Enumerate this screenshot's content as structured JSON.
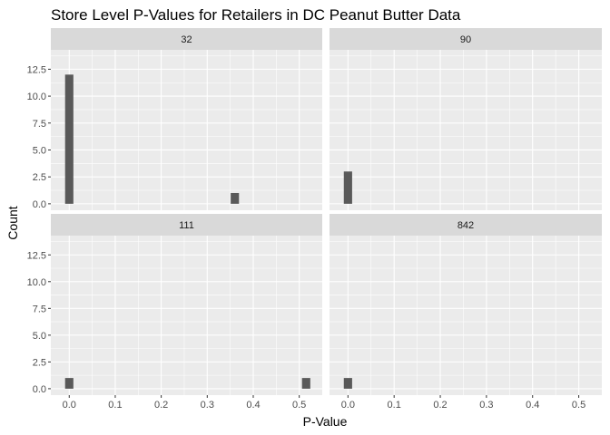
{
  "chart_data": {
    "type": "bar",
    "title": "Store Level P-Values for Retailers in DC Peanut Butter Data",
    "xlabel": "P-Value",
    "ylabel": "Count",
    "xlim": [
      -0.04,
      0.55
    ],
    "ylim": [
      -0.6,
      14.3
    ],
    "x_ticks": [
      0.0,
      0.1,
      0.2,
      0.3,
      0.4,
      0.5
    ],
    "x_tick_labels": [
      "0.0",
      "0.1",
      "0.2",
      "0.3",
      "0.4",
      "0.5"
    ],
    "y_ticks": [
      0.0,
      2.5,
      5.0,
      7.5,
      10.0,
      12.5
    ],
    "y_tick_labels": [
      "0.0",
      "2.5",
      "5.0",
      "7.5",
      "10.0",
      "12.5"
    ],
    "bin_width": 0.018,
    "grid": true,
    "facets": [
      {
        "label": "32",
        "bars": [
          {
            "x": 0.0,
            "count": 12
          },
          {
            "x": 0.36,
            "count": 1
          }
        ]
      },
      {
        "label": "90",
        "bars": [
          {
            "x": 0.0,
            "count": 3
          }
        ]
      },
      {
        "label": "111",
        "bars": [
          {
            "x": 0.0,
            "count": 1
          },
          {
            "x": 0.515,
            "count": 1
          }
        ]
      },
      {
        "label": "842",
        "bars": [
          {
            "x": 0.0,
            "count": 1
          }
        ]
      }
    ],
    "colors": {
      "panel_bg": "#ebebeb",
      "strip_bg": "#d9d9d9",
      "bar_fill": "#595959",
      "grid_major": "#ffffff"
    }
  }
}
